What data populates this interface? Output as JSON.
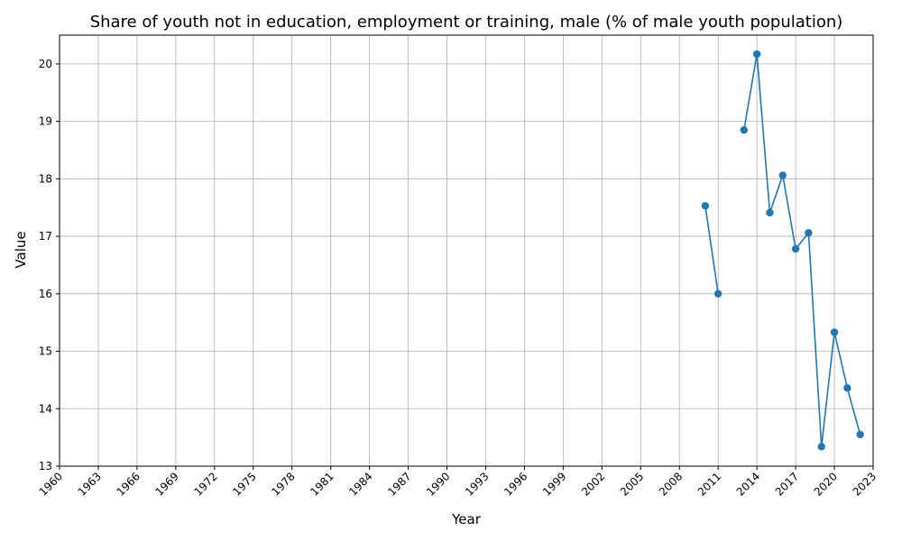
{
  "chart_data": {
    "type": "line",
    "title": "Share of youth not in education, employment or training, male (% of male youth population)",
    "xlabel": "Year",
    "ylabel": "Value",
    "xlim": [
      1960,
      2023
    ],
    "ylim": [
      13,
      20.5
    ],
    "x_ticks": [
      1960,
      1963,
      1966,
      1969,
      1972,
      1975,
      1978,
      1981,
      1984,
      1987,
      1990,
      1993,
      1996,
      1999,
      2002,
      2005,
      2008,
      2011,
      2014,
      2017,
      2020,
      2023
    ],
    "y_ticks": [
      13,
      14,
      15,
      16,
      17,
      18,
      19,
      20
    ],
    "grid": true,
    "series": [
      {
        "color": "#1f77b4",
        "marker": "circle",
        "segments": [
          [
            [
              2010,
              17.53
            ],
            [
              2011,
              16.0
            ]
          ],
          [
            [
              2013,
              18.85
            ],
            [
              2014,
              20.17
            ],
            [
              2015,
              17.41
            ],
            [
              2016,
              18.06
            ],
            [
              2017,
              16.78
            ],
            [
              2018,
              17.06
            ],
            [
              2019,
              13.34
            ],
            [
              2020,
              15.33
            ],
            [
              2021,
              14.36
            ],
            [
              2022,
              13.55
            ]
          ]
        ]
      }
    ]
  }
}
